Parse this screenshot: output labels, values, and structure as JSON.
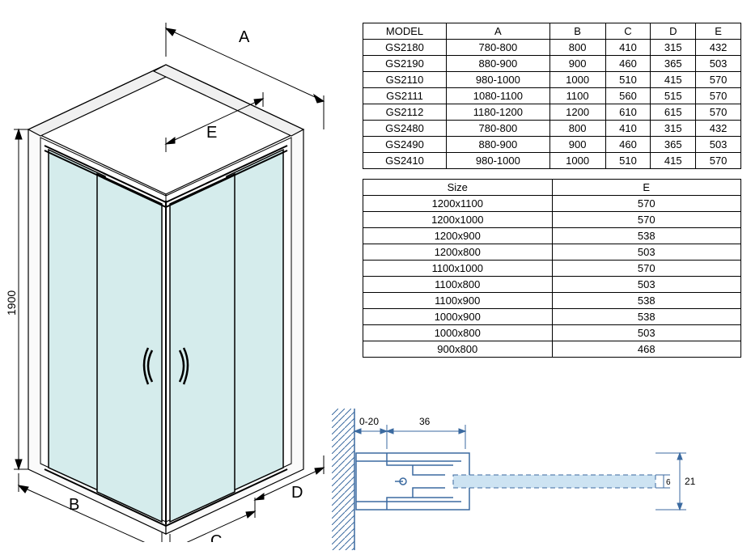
{
  "diagram": {
    "labels": {
      "A": "A",
      "B": "B",
      "C": "C",
      "D": "D",
      "E": "E",
      "height": "1900"
    },
    "colors": {
      "glass_fill": "#d5ecec",
      "wall_fill": "#f2f2f2",
      "line": "#000000",
      "dim_line": "#000000",
      "profile_line": "#3b6aa0",
      "profile_fill": "#cde3f2"
    }
  },
  "model_table": {
    "headers": [
      "MODEL",
      "A",
      "B",
      "C",
      "D",
      "E"
    ],
    "rows": [
      [
        "GS2180",
        "780-800",
        "800",
        "410",
        "315",
        "432"
      ],
      [
        "GS2190",
        "880-900",
        "900",
        "460",
        "365",
        "503"
      ],
      [
        "GS2110",
        "980-1000",
        "1000",
        "510",
        "415",
        "570"
      ],
      [
        "GS2111",
        "1080-1100",
        "1100",
        "560",
        "515",
        "570"
      ],
      [
        "GS2112",
        "1180-1200",
        "1200",
        "610",
        "615",
        "570"
      ],
      [
        "GS2480",
        "780-800",
        "800",
        "410",
        "315",
        "432"
      ],
      [
        "GS2490",
        "880-900",
        "900",
        "460",
        "365",
        "503"
      ],
      [
        "GS2410",
        "980-1000",
        "1000",
        "510",
        "415",
        "570"
      ]
    ]
  },
  "size_table": {
    "headers": [
      "Size",
      "E"
    ],
    "rows": [
      [
        "1200x1100",
        "570"
      ],
      [
        "1200x1000",
        "570"
      ],
      [
        "1200x900",
        "538"
      ],
      [
        "1200x800",
        "503"
      ],
      [
        "1100x1000",
        "570"
      ],
      [
        "1100x800",
        "503"
      ],
      [
        "1100x900",
        "538"
      ],
      [
        "1000x900",
        "538"
      ],
      [
        "1000x800",
        "503"
      ],
      [
        "900x800",
        "468"
      ]
    ]
  },
  "profile": {
    "labels": {
      "gap": "0-20",
      "profile_w": "36",
      "total_h": "21",
      "glass_h": "6"
    }
  }
}
